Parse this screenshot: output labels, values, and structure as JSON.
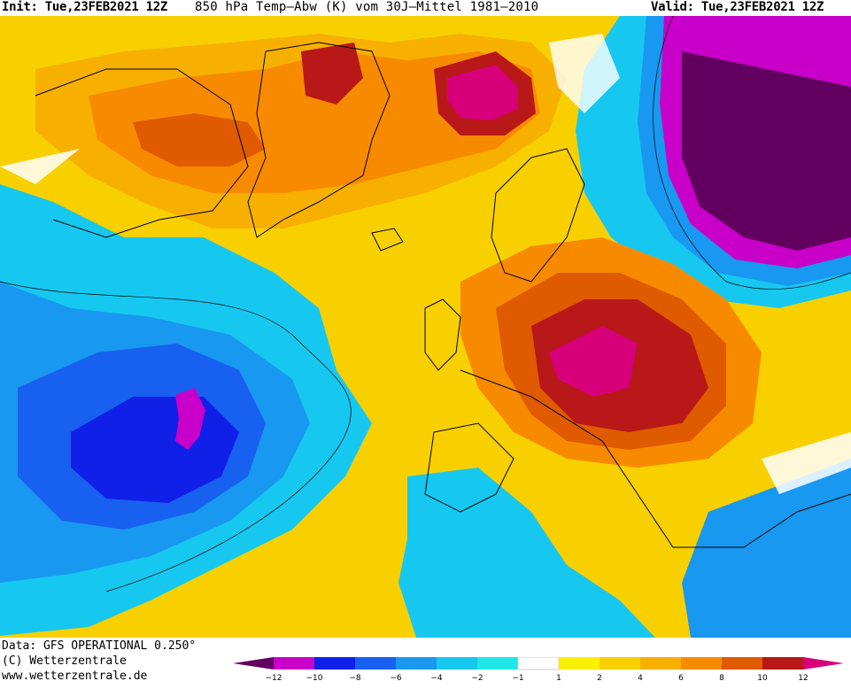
{
  "header": {
    "init": "Init: Tue,23FEB2021 12Z",
    "title": "850 hPa Temp–Abw (K) vom 30J–Mittel 1981–2010",
    "valid": "Valid: Tue,23FEB2021 12Z"
  },
  "footer": {
    "data_source": "Data: GFS OPERATIONAL 0.250°",
    "copyright": "(C) Wetterzentrale",
    "website": "www.wetterzentrale.de"
  },
  "legend": {
    "colors": [
      "#62005f",
      "#c900c9",
      "#1020e8",
      "#1860f0",
      "#1898f0",
      "#16c8f0",
      "#20e8e8",
      "#ffffff",
      "#f8f000",
      "#f8d000",
      "#f8b000",
      "#f88a00",
      "#e05a00",
      "#b81818",
      "#d8007a"
    ],
    "ticks": [
      "−12",
      "−10",
      "−8",
      "−6",
      "−4",
      "−2",
      "−1",
      "1",
      "2",
      "4",
      "6",
      "8",
      "10",
      "12"
    ]
  },
  "map": {
    "region": "North Atlantic and Europe",
    "field_colors": {
      "deep_negative": "#62005f",
      "very_cold": "#c900c9",
      "cold_blue": "#1860f0",
      "light_blue": "#16c8f0",
      "neutral": "#ffffff",
      "warm_yellow": "#f8d000",
      "warm_orange": "#f88a00",
      "hot_red": "#b81818",
      "hot_magenta": "#d8007a"
    }
  }
}
